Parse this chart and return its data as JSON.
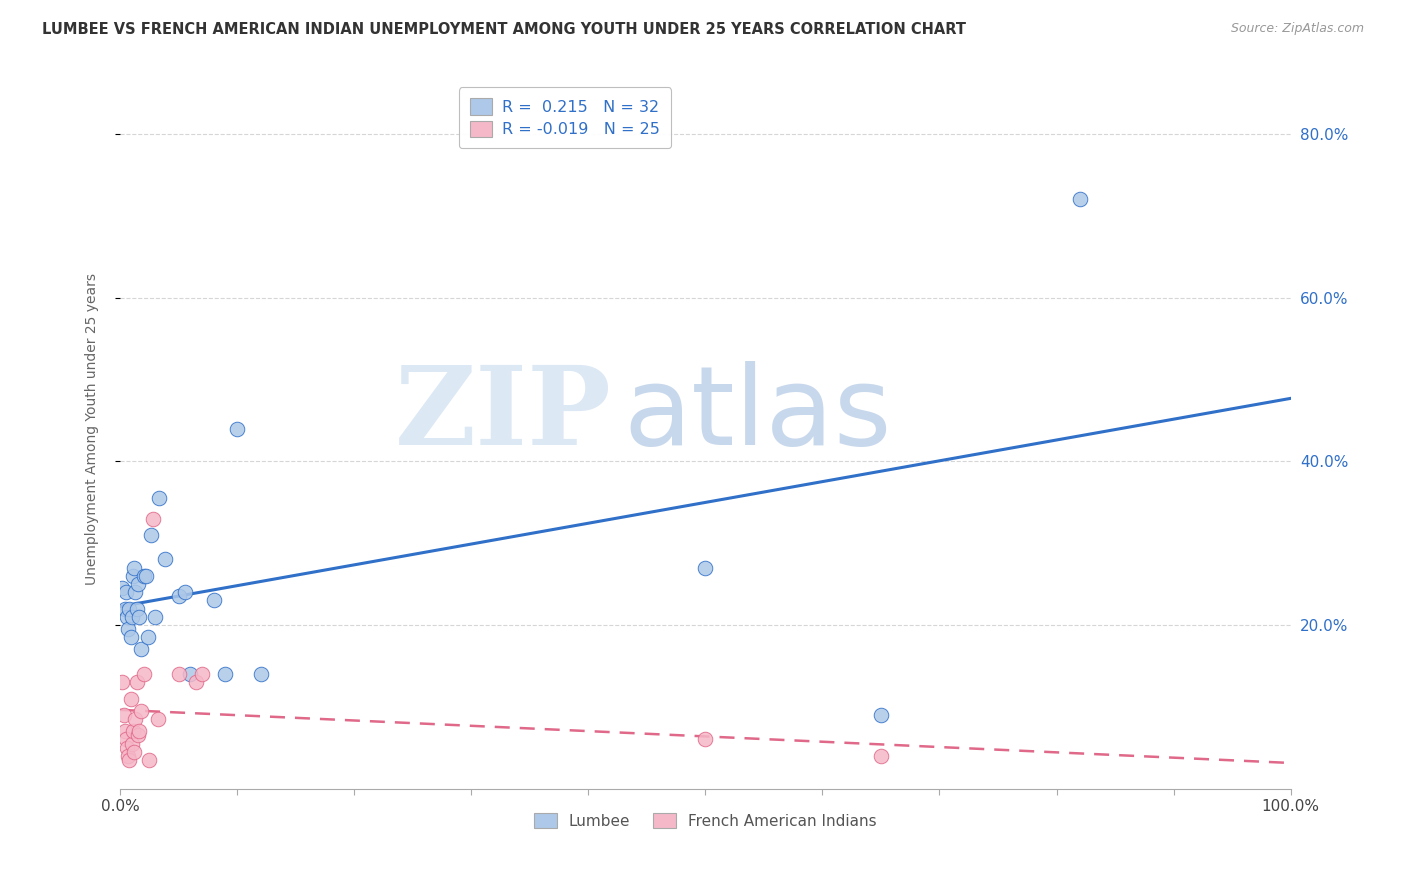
{
  "title": "LUMBEE VS FRENCH AMERICAN INDIAN UNEMPLOYMENT AMONG YOUTH UNDER 25 YEARS CORRELATION CHART",
  "source": "Source: ZipAtlas.com",
  "ylabel": "Unemployment Among Youth under 25 years",
  "xlim": [
    0,
    1.0
  ],
  "ylim": [
    0,
    0.88
  ],
  "xticks": [
    0.0,
    0.1,
    0.2,
    0.3,
    0.4,
    0.5,
    0.6,
    0.7,
    0.8,
    0.9,
    1.0
  ],
  "xtick_labels": [
    "0.0%",
    "",
    "",
    "",
    "",
    "",
    "",
    "",
    "",
    "",
    "100.0%"
  ],
  "yticks": [
    0.2,
    0.4,
    0.6,
    0.8
  ],
  "ytick_labels_right": [
    "20.0%",
    "40.0%",
    "60.0%",
    "80.0%"
  ],
  "lumbee_R": 0.215,
  "lumbee_N": 32,
  "fai_R": -0.019,
  "fai_N": 25,
  "lumbee_color": "#adc8e8",
  "fai_color": "#f5b8c8",
  "lumbee_line_color": "#3070c8",
  "fai_line_color": "#e06888",
  "background": "#ffffff",
  "grid_color": "#cccccc",
  "lumbee_x": [
    0.002,
    0.004,
    0.005,
    0.006,
    0.007,
    0.008,
    0.009,
    0.01,
    0.011,
    0.012,
    0.013,
    0.014,
    0.015,
    0.016,
    0.018,
    0.02,
    0.022,
    0.024,
    0.026,
    0.03,
    0.033,
    0.038,
    0.05,
    0.055,
    0.06,
    0.08,
    0.09,
    0.1,
    0.12,
    0.5,
    0.65,
    0.82
  ],
  "lumbee_y": [
    0.245,
    0.22,
    0.24,
    0.21,
    0.195,
    0.22,
    0.185,
    0.21,
    0.26,
    0.27,
    0.24,
    0.22,
    0.25,
    0.21,
    0.17,
    0.26,
    0.26,
    0.185,
    0.31,
    0.21,
    0.355,
    0.28,
    0.235,
    0.24,
    0.14,
    0.23,
    0.14,
    0.44,
    0.14,
    0.27,
    0.09,
    0.72
  ],
  "fai_x": [
    0.002,
    0.003,
    0.004,
    0.005,
    0.006,
    0.007,
    0.008,
    0.009,
    0.01,
    0.011,
    0.012,
    0.013,
    0.014,
    0.015,
    0.016,
    0.018,
    0.02,
    0.025,
    0.028,
    0.032,
    0.05,
    0.065,
    0.07,
    0.5,
    0.65
  ],
  "fai_y": [
    0.13,
    0.09,
    0.07,
    0.06,
    0.05,
    0.04,
    0.035,
    0.11,
    0.055,
    0.07,
    0.045,
    0.085,
    0.13,
    0.065,
    0.07,
    0.095,
    0.14,
    0.035,
    0.33,
    0.085,
    0.14,
    0.13,
    0.14,
    0.06,
    0.04
  ]
}
